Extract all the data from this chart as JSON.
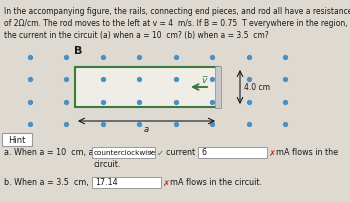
{
  "bg_color": "#dedad2",
  "white_bg": "#f5f4f0",
  "problem_line1": "In the accompanying figure, the rails, connecting end pieces, and rod all have a resistance per unit length",
  "problem_line2": "of 2Ω/cm. The rod moves to the left at v = 4  m/s. If B = 0.75  T everywhere in the region, what is",
  "problem_line3": "the current in the circuit (a) when a = 10  cm? (b) when a = 3.5  cm?",
  "dot_color": "#4a90c4",
  "rail_color": "#3a7a3a",
  "rod_color": "#b8b8b8",
  "arrow_color": "#3a7a3a",
  "B_label": "B",
  "v_label": "v̅",
  "dim_label": "4.0 cm",
  "a_label": "a",
  "hint_label": "Hint",
  "line_a1": "a. When a = 10  cm, a",
  "dropdown_text": "counterclockwise",
  "current_of": "current of",
  "current_val": "6",
  "mA_flows": "mA flows in the",
  "circuit": "circuit.",
  "line_b1": "b. When a = 3.5  cm,",
  "b_val": "17.14",
  "mA_flows_b": "mA flows in the circuit.",
  "cross_color": "#cc2200",
  "check_color": "#228822",
  "text_color": "#1a1a1a",
  "box_edge_color": "#999999"
}
